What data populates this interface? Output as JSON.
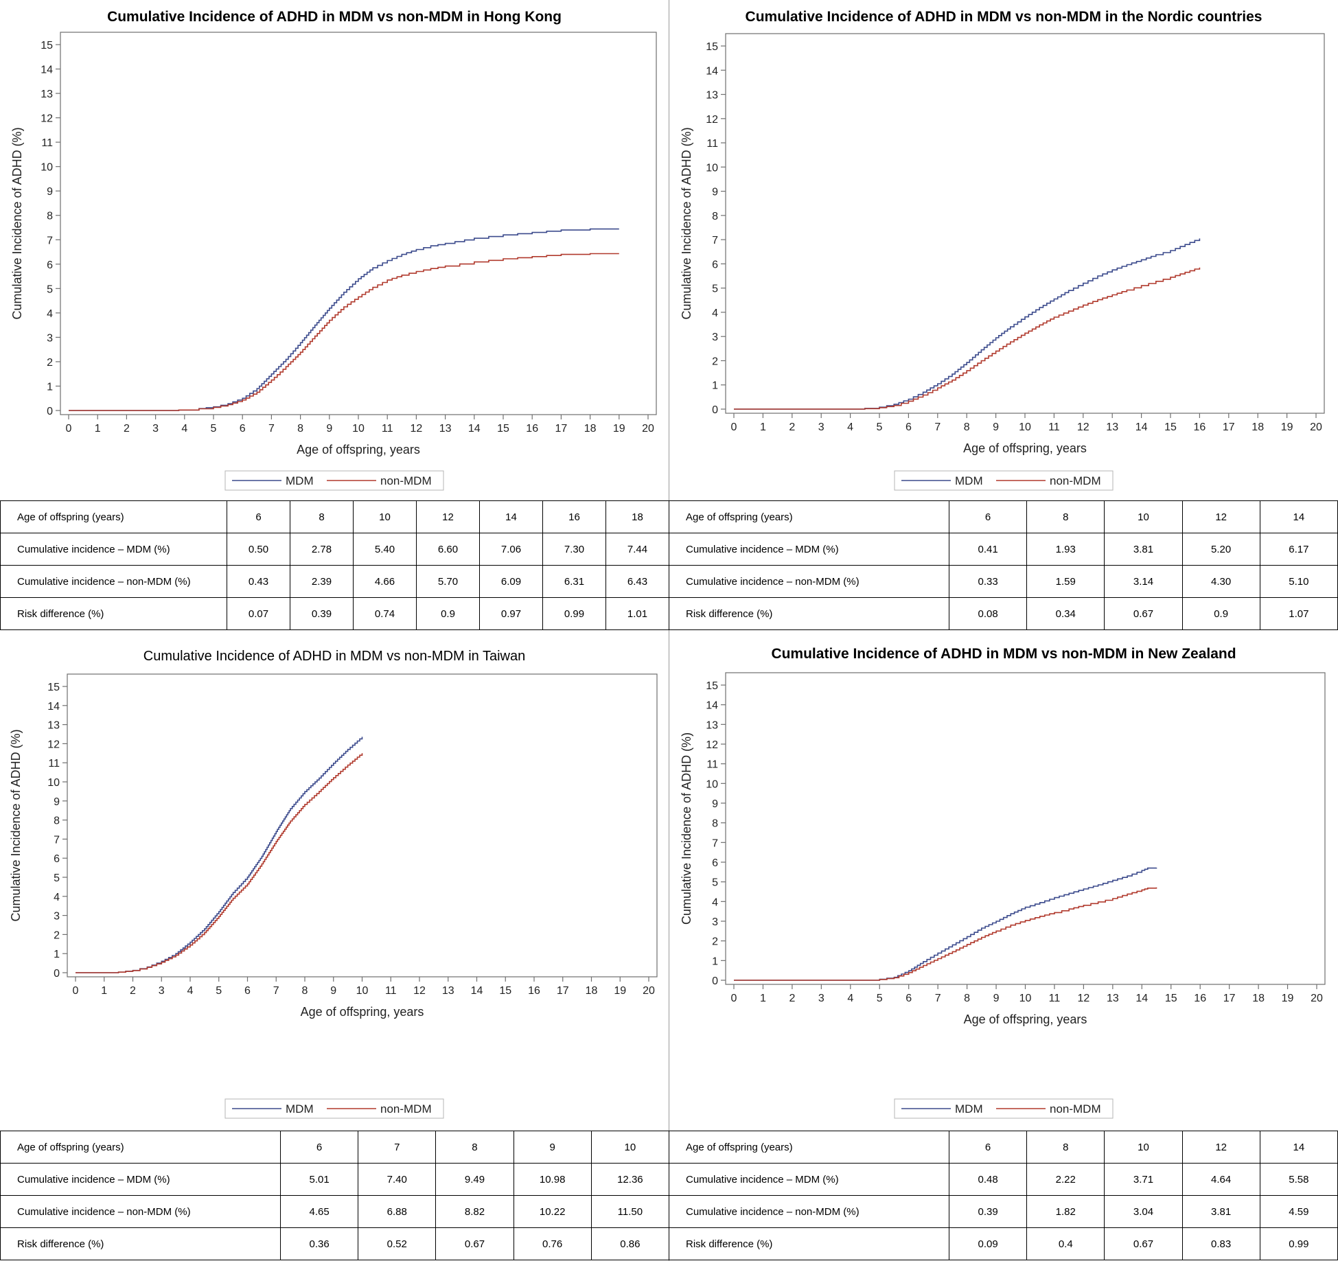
{
  "colors": {
    "mdm": "#3b4a8c",
    "non_mdm": "#b0392c",
    "axis": "#6f6f6f"
  },
  "legend": {
    "mdm": "MDM",
    "non_mdm": "non-MDM"
  },
  "chart_data": [
    {
      "type": "line",
      "title": "Cumulative Incidence of ADHD in MDM vs non-MDM in Hong Kong",
      "title_bold": true,
      "xlabel": "Age of offspring, years",
      "ylabel": "Cumulative Incidence of ADHD (%)",
      "xlim": [
        0,
        20
      ],
      "ylim": [
        0,
        15
      ],
      "xticks": [
        0,
        1,
        2,
        3,
        4,
        5,
        6,
        7,
        8,
        9,
        10,
        11,
        12,
        13,
        14,
        15,
        16,
        17,
        18,
        19,
        20
      ],
      "yticks": [
        0,
        1,
        2,
        3,
        4,
        5,
        6,
        7,
        8,
        9,
        10,
        11,
        12,
        13,
        14,
        15
      ],
      "series": [
        {
          "name": "MDM",
          "x": [
            0,
            3,
            3.8,
            4.5,
            5,
            5.5,
            6,
            6.5,
            7,
            7.5,
            8,
            8.5,
            9,
            9.5,
            10,
            10.5,
            11,
            11.5,
            12,
            12.5,
            13,
            14,
            15,
            16,
            17,
            18,
            19
          ],
          "values": [
            0,
            0,
            0.02,
            0.08,
            0.15,
            0.28,
            0.5,
            0.9,
            1.5,
            2.1,
            2.78,
            3.5,
            4.2,
            4.85,
            5.4,
            5.85,
            6.15,
            6.4,
            6.6,
            6.75,
            6.85,
            7.06,
            7.2,
            7.3,
            7.4,
            7.44,
            7.44
          ]
        },
        {
          "name": "non-MDM",
          "x": [
            0,
            3,
            3.8,
            4.5,
            5,
            5.5,
            6,
            6.5,
            7,
            7.5,
            8,
            8.5,
            9,
            9.5,
            10,
            10.5,
            11,
            11.5,
            12,
            12.5,
            13,
            14,
            15,
            16,
            17,
            18,
            19
          ],
          "values": [
            0,
            0,
            0.02,
            0.07,
            0.13,
            0.24,
            0.43,
            0.75,
            1.25,
            1.8,
            2.39,
            3.05,
            3.7,
            4.25,
            4.66,
            5.05,
            5.35,
            5.55,
            5.7,
            5.82,
            5.92,
            6.09,
            6.22,
            6.31,
            6.4,
            6.43,
            6.43
          ]
        }
      ]
    },
    {
      "type": "line",
      "title": "Cumulative Incidence of ADHD in MDM vs non-MDM in the Nordic countries",
      "title_bold": true,
      "xlabel": "Age of offspring, years",
      "ylabel": "Cumulative Incidence of ADHD (%)",
      "xlim": [
        0,
        20
      ],
      "ylim": [
        0,
        15
      ],
      "xticks": [
        0,
        1,
        2,
        3,
        4,
        5,
        6,
        7,
        8,
        9,
        10,
        11,
        12,
        13,
        14,
        15,
        16,
        17,
        18,
        19,
        20
      ],
      "yticks": [
        0,
        1,
        2,
        3,
        4,
        5,
        6,
        7,
        8,
        9,
        10,
        11,
        12,
        13,
        14,
        15
      ],
      "series": [
        {
          "name": "MDM",
          "x": [
            0,
            4,
            4.5,
            5,
            5.5,
            6,
            6.5,
            7,
            7.5,
            8,
            8.5,
            9,
            9.5,
            10,
            10.5,
            11,
            11.5,
            12,
            12.5,
            13,
            13.5,
            14,
            14.5,
            15,
            15.5,
            16
          ],
          "values": [
            0,
            0,
            0.03,
            0.08,
            0.2,
            0.41,
            0.7,
            1.05,
            1.45,
            1.93,
            2.45,
            2.95,
            3.4,
            3.81,
            4.2,
            4.55,
            4.9,
            5.2,
            5.5,
            5.75,
            5.97,
            6.17,
            6.38,
            6.55,
            6.8,
            7.05
          ]
        },
        {
          "name": "non-MDM",
          "x": [
            0,
            4,
            4.5,
            5,
            5.5,
            6,
            6.5,
            7,
            7.5,
            8,
            8.5,
            9,
            9.5,
            10,
            10.5,
            11,
            11.5,
            12,
            12.5,
            13,
            13.5,
            14,
            14.5,
            15,
            15.5,
            16
          ],
          "values": [
            0,
            0,
            0.02,
            0.06,
            0.15,
            0.33,
            0.58,
            0.88,
            1.2,
            1.59,
            2.0,
            2.4,
            2.78,
            3.14,
            3.48,
            3.8,
            4.05,
            4.3,
            4.52,
            4.72,
            4.92,
            5.1,
            5.28,
            5.45,
            5.65,
            5.85
          ]
        }
      ]
    },
    {
      "type": "line",
      "title": "Cumulative Incidence of ADHD in MDM vs non-MDM in Taiwan",
      "title_bold": false,
      "xlabel": "Age of offspring, years",
      "ylabel": "Cumulative Incidence of ADHD (%)",
      "xlim": [
        0,
        20
      ],
      "ylim": [
        0,
        15
      ],
      "xticks": [
        0,
        1,
        2,
        3,
        4,
        5,
        6,
        7,
        8,
        9,
        10,
        11,
        12,
        13,
        14,
        15,
        16,
        17,
        18,
        19,
        20
      ],
      "yticks": [
        0,
        1,
        2,
        3,
        4,
        5,
        6,
        7,
        8,
        9,
        10,
        11,
        12,
        13,
        14,
        15
      ],
      "series": [
        {
          "name": "MDM",
          "x": [
            0,
            1,
            1.5,
            2,
            2.5,
            3,
            3.5,
            4,
            4.5,
            5,
            5.5,
            6,
            6.5,
            7,
            7.5,
            8,
            8.5,
            9,
            9.5,
            10
          ],
          "values": [
            0,
            0,
            0.03,
            0.12,
            0.3,
            0.6,
            1.0,
            1.6,
            2.3,
            3.2,
            4.2,
            5.01,
            6.1,
            7.4,
            8.6,
            9.49,
            10.2,
            10.98,
            11.7,
            12.36
          ]
        },
        {
          "name": "non-MDM",
          "x": [
            0,
            1,
            1.5,
            2,
            2.5,
            3,
            3.5,
            4,
            4.5,
            5,
            5.5,
            6,
            6.5,
            7,
            7.5,
            8,
            8.5,
            9,
            9.5,
            10
          ],
          "values": [
            0,
            0,
            0.03,
            0.11,
            0.28,
            0.55,
            0.92,
            1.45,
            2.1,
            2.95,
            3.9,
            4.65,
            5.7,
            6.88,
            7.95,
            8.82,
            9.5,
            10.22,
            10.88,
            11.5
          ]
        }
      ]
    },
    {
      "type": "line",
      "title": "Cumulative Incidence of ADHD in MDM vs non-MDM in New Zealand",
      "title_bold": true,
      "xlabel": "Age of offspring, years",
      "ylabel": "Cumulative Incidence of ADHD (%)",
      "xlim": [
        0,
        20
      ],
      "ylim": [
        0,
        15
      ],
      "xticks": [
        0,
        1,
        2,
        3,
        4,
        5,
        6,
        7,
        8,
        9,
        10,
        11,
        12,
        13,
        14,
        15,
        16,
        17,
        18,
        19,
        20
      ],
      "yticks": [
        0,
        1,
        2,
        3,
        4,
        5,
        6,
        7,
        8,
        9,
        10,
        11,
        12,
        13,
        14,
        15
      ],
      "series": [
        {
          "name": "MDM",
          "x": [
            0,
            4.3,
            5,
            5.5,
            6,
            6.5,
            7,
            7.5,
            8,
            8.5,
            9,
            9.5,
            10,
            10.5,
            11,
            11.5,
            12,
            12.5,
            13,
            13.5,
            14,
            14.2,
            14.5
          ],
          "values": [
            0,
            0,
            0.05,
            0.15,
            0.48,
            0.95,
            1.38,
            1.8,
            2.22,
            2.65,
            3.0,
            3.38,
            3.71,
            3.95,
            4.2,
            4.42,
            4.64,
            4.85,
            5.08,
            5.3,
            5.58,
            5.7,
            5.72
          ]
        },
        {
          "name": "non-MDM",
          "x": [
            0,
            4.3,
            5,
            5.5,
            6,
            6.5,
            7,
            7.5,
            8,
            8.5,
            9,
            9.5,
            10,
            10.5,
            11,
            11.5,
            12,
            12.5,
            13,
            13.5,
            14,
            14.2,
            14.5
          ],
          "values": [
            0,
            0,
            0.04,
            0.13,
            0.39,
            0.75,
            1.1,
            1.45,
            1.82,
            2.18,
            2.5,
            2.8,
            3.04,
            3.25,
            3.44,
            3.62,
            3.81,
            3.98,
            4.15,
            4.38,
            4.59,
            4.68,
            4.72
          ]
        }
      ]
    }
  ],
  "tables": [
    {
      "header_label": "Age of offspring (years)",
      "ages": [
        "6",
        "8",
        "10",
        "12",
        "14",
        "16",
        "18"
      ],
      "rows": [
        {
          "label": "Cumulative incidence – MDM (%)",
          "values": [
            "0.50",
            "2.78",
            "5.40",
            "6.60",
            "7.06",
            "7.30",
            "7.44"
          ]
        },
        {
          "label": "Cumulative incidence – non-MDM (%)",
          "values": [
            "0.43",
            "2.39",
            "4.66",
            "5.70",
            "6.09",
            "6.31",
            "6.43"
          ]
        },
        {
          "label": "Risk difference (%)",
          "values": [
            "0.07",
            "0.39",
            "0.74",
            "0.9",
            "0.97",
            "0.99",
            "1.01"
          ]
        }
      ]
    },
    {
      "header_label": "Age of offspring (years)",
      "ages": [
        "6",
        "8",
        "10",
        "12",
        "14"
      ],
      "rows": [
        {
          "label": "Cumulative incidence – MDM (%)",
          "values": [
            "0.41",
            "1.93",
            "3.81",
            "5.20",
            "6.17"
          ]
        },
        {
          "label": "Cumulative incidence – non-MDM (%)",
          "values": [
            "0.33",
            "1.59",
            "3.14",
            "4.30",
            "5.10"
          ]
        },
        {
          "label": "Risk difference (%)",
          "values": [
            "0.08",
            "0.34",
            "0.67",
            "0.9",
            "1.07"
          ]
        }
      ]
    },
    {
      "header_label": "Age of offspring (years)",
      "ages": [
        "6",
        "7",
        "8",
        "9",
        "10"
      ],
      "rows": [
        {
          "label": "Cumulative incidence – MDM (%)",
          "values": [
            "5.01",
            "7.40",
            "9.49",
            "10.98",
            "12.36"
          ]
        },
        {
          "label": "Cumulative incidence – non-MDM (%)",
          "values": [
            "4.65",
            "6.88",
            "8.82",
            "10.22",
            "11.50"
          ]
        },
        {
          "label": "Risk difference (%)",
          "values": [
            "0.36",
            "0.52",
            "0.67",
            "0.76",
            "0.86"
          ]
        }
      ]
    },
    {
      "header_label": "Age of offspring (years)",
      "ages": [
        "6",
        "8",
        "10",
        "12",
        "14"
      ],
      "rows": [
        {
          "label": "Cumulative incidence – MDM (%)",
          "values": [
            "0.48",
            "2.22",
            "3.71",
            "4.64",
            "5.58"
          ]
        },
        {
          "label": "Cumulative incidence – non-MDM (%)",
          "values": [
            "0.39",
            "1.82",
            "3.04",
            "3.81",
            "4.59"
          ]
        },
        {
          "label": "Risk difference (%)",
          "values": [
            "0.09",
            "0.4",
            "0.67",
            "0.83",
            "0.99"
          ]
        }
      ]
    }
  ]
}
